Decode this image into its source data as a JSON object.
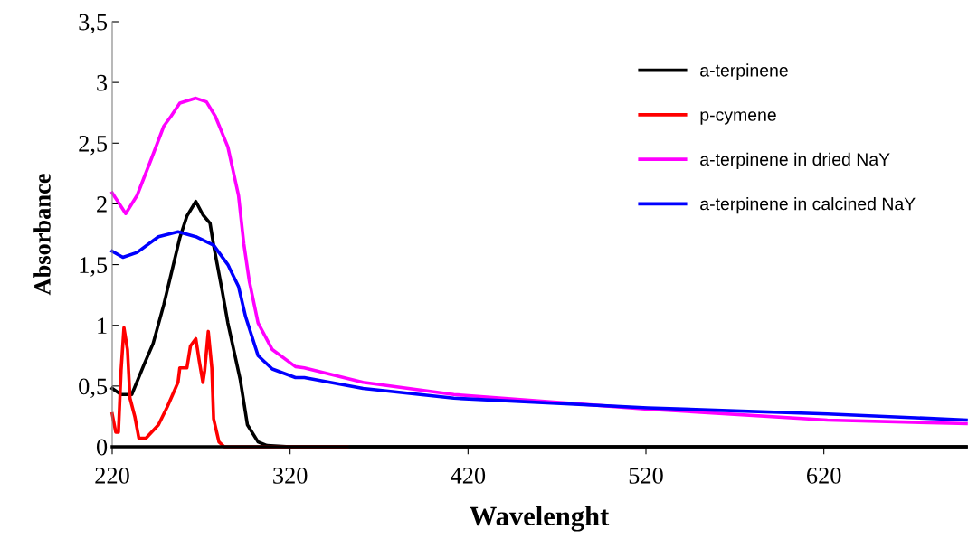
{
  "chart_data": {
    "type": "line",
    "xlabel": "Wavelenght",
    "ylabel": "Absorbance",
    "xlim": [
      220,
      700
    ],
    "xticks": [
      220,
      320,
      420,
      520,
      620
    ],
    "ylim": [
      0,
      3.5
    ],
    "yticks": [
      {
        "value": 0,
        "label": "0"
      },
      {
        "value": 0.5,
        "label": "0,5"
      },
      {
        "value": 1,
        "label": "1"
      },
      {
        "value": 1.5,
        "label": "1,5"
      },
      {
        "value": 2,
        "label": "2"
      },
      {
        "value": 2.5,
        "label": "2,5"
      },
      {
        "value": 3,
        "label": "3"
      },
      {
        "value": 3.5,
        "label": "3,5"
      }
    ],
    "grid": false,
    "legend": "top right",
    "marker": "none",
    "line_style": "solid",
    "series": [
      {
        "name": "a-terpinene",
        "color": "#000000",
        "x": [
          220,
          225,
          231,
          238,
          243,
          249,
          258,
          262,
          267,
          271,
          275,
          277,
          282,
          285,
          292,
          296,
          302,
          307,
          320,
          400,
          500,
          600,
          700
        ],
        "values": [
          0.48,
          0.43,
          0.43,
          0.68,
          0.85,
          1.17,
          1.72,
          1.9,
          2.02,
          1.91,
          1.84,
          1.66,
          1.27,
          1.02,
          0.55,
          0.18,
          0.04,
          0.01,
          0,
          0,
          0,
          0,
          0
        ]
      },
      {
        "name": "p-cymene",
        "color": "#ff0000",
        "x": [
          220,
          222,
          223.5,
          225,
          226.6,
          228.6,
          230,
          232.7,
          235,
          239,
          246,
          251,
          257,
          258,
          262,
          264,
          267,
          269,
          271,
          272,
          274,
          276,
          277,
          280,
          283,
          300,
          352
        ],
        "values": [
          0.27,
          0.12,
          0.12,
          0.63,
          0.98,
          0.8,
          0.4,
          0.25,
          0.07,
          0.07,
          0.18,
          0.33,
          0.53,
          0.65,
          0.65,
          0.83,
          0.89,
          0.7,
          0.53,
          0.63,
          0.95,
          0.65,
          0.23,
          0.04,
          0,
          0,
          0
        ]
      },
      {
        "name": "a-terpinene in dried NaY",
        "color": "#ff00ff",
        "x": [
          220,
          227.6,
          234,
          242,
          249,
          253,
          258,
          267,
          273,
          278,
          285,
          291,
          294,
          297,
          302,
          310,
          323,
          328,
          361,
          412,
          521,
          622,
          700
        ],
        "values": [
          2.09,
          1.92,
          2.07,
          2.37,
          2.64,
          2.72,
          2.83,
          2.87,
          2.84,
          2.72,
          2.47,
          2.07,
          1.67,
          1.37,
          1.02,
          0.8,
          0.66,
          0.65,
          0.53,
          0.43,
          0.31,
          0.22,
          0.19
        ]
      },
      {
        "name": "a-terpinene in calcined NaY",
        "color": "#0000ff",
        "x": [
          220,
          226,
          234,
          246,
          257,
          267,
          277,
          285,
          291,
          295,
          302,
          310,
          323,
          328,
          361,
          412,
          521,
          622,
          700
        ],
        "values": [
          1.61,
          1.56,
          1.6,
          1.73,
          1.77,
          1.73,
          1.66,
          1.5,
          1.32,
          1.07,
          0.75,
          0.64,
          0.57,
          0.57,
          0.48,
          0.4,
          0.32,
          0.27,
          0.22
        ]
      }
    ]
  }
}
